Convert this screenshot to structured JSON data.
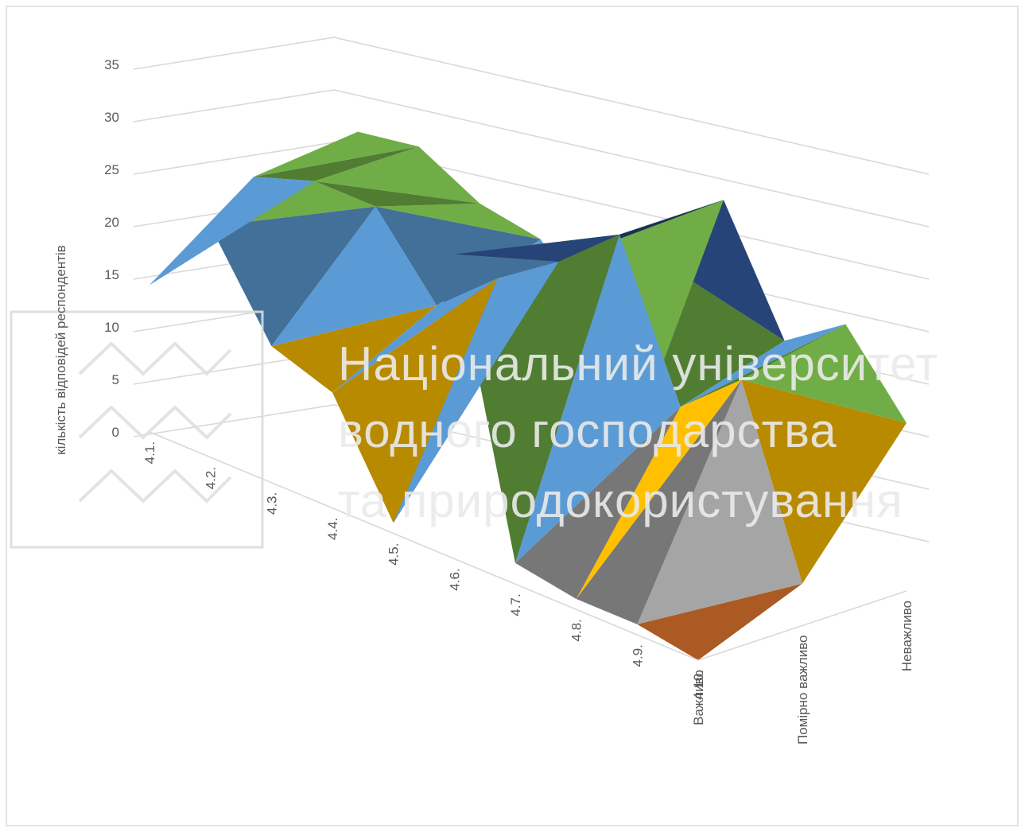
{
  "chart_data": {
    "type": "surface",
    "ylabel": "кількість відповідей респондентів",
    "zlim": [
      0,
      35
    ],
    "z_ticks": [
      0,
      5,
      10,
      15,
      20,
      25,
      30,
      35
    ],
    "x_categories": [
      "4.1.",
      "4.2.",
      "4.3.",
      "4.4.",
      "4.5.",
      "4.6.",
      "4.7.",
      "4.8.",
      "4.9.",
      "4.10."
    ],
    "depth_categories": [
      "Важливо",
      "Помірно важливо",
      "Неважливо"
    ],
    "values": [
      [
        14,
        21,
        22
      ],
      [
        22,
        23,
        23
      ],
      [
        13,
        23,
        20
      ],
      [
        11,
        16,
        19
      ],
      [
        1,
        21,
        12
      ],
      [
        29,
        25,
        12
      ],
      [
        2,
        30,
        30
      ],
      [
        1,
        16,
        19
      ],
      [
        1,
        21,
        23
      ],
      [
        0,
        4,
        16
      ]
    ],
    "band_colors": [
      "#ed7d31",
      "#a5a5a5",
      "#ffc000",
      "#5b9bd5",
      "#70ad47",
      "#264478"
    ],
    "grid": true
  },
  "watermark": {
    "lines": [
      "Національний університет",
      "водного господарства",
      "та природокористування"
    ],
    "logo": "nuwm-waves-logo"
  }
}
